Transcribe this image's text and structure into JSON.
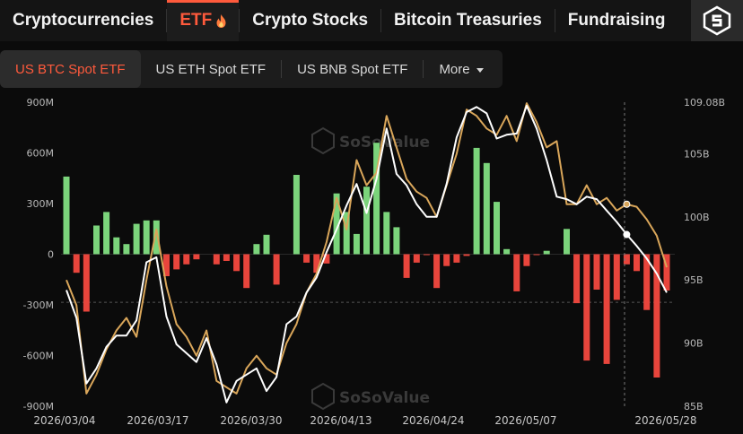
{
  "top_nav": {
    "tabs": [
      {
        "label": "Cryptocurrencies"
      },
      {
        "label": "ETF"
      },
      {
        "label": "Crypto Stocks"
      },
      {
        "label": "Bitcoin Treasuries"
      },
      {
        "label": "Fundraising"
      }
    ]
  },
  "sub_nav": {
    "tabs": [
      {
        "label": "US BTC Spot ETF"
      },
      {
        "label": "US ETH Spot ETF"
      },
      {
        "label": "US BNB Spot ETF"
      }
    ],
    "more_label": "More"
  },
  "watermark": {
    "text": "SoSoValue"
  },
  "colors": {
    "accent": "#ff5a3c",
    "inflow": "#7bd47b",
    "outflow": "#e8453c",
    "line_white": "#ffffff",
    "line_gold": "#d9a65a"
  },
  "chart_data": {
    "type": "bar",
    "left_axis": {
      "ticks": [
        "900M",
        "600M",
        "300M",
        "0",
        "-300M",
        "-600M",
        "-900M"
      ],
      "range": [
        -900,
        900
      ],
      "unit": "M"
    },
    "right_axis": {
      "ticks": [
        "109.08B",
        "105B",
        "100B",
        "95B",
        "90B",
        "85B"
      ],
      "range": [
        85,
        109.08
      ],
      "unit": "B"
    },
    "x_ticks": [
      "2026/03/04",
      "2026/03/17",
      "2026/03/30",
      "2026/04/13",
      "2026/04/24",
      "2026/05/07",
      "2026/05/28"
    ],
    "series": [
      {
        "values": [
          460,
          -110,
          -340,
          170,
          250,
          100,
          60,
          180,
          200,
          200,
          -130,
          -90,
          -60,
          -30,
          0,
          -60,
          -40,
          -100,
          -200,
          60,
          115,
          -180,
          0,
          470,
          -50,
          -110,
          -55,
          360,
          250,
          120,
          400,
          660,
          250,
          160,
          -140,
          -50,
          -1,
          -200,
          -70,
          -50,
          -10,
          630,
          540,
          310,
          30,
          -220,
          -70,
          -2,
          20,
          0,
          150,
          -290,
          -630,
          -210,
          -650,
          -270,
          -60,
          -100,
          -330,
          -730,
          -215
        ]
      },
      {
        "values": [
          94.2,
          92.0,
          86.8,
          88.0,
          89.7,
          90.6,
          90.6,
          91.8,
          96.4,
          96.8,
          92.1,
          89.9,
          89.2,
          88.5,
          90.4,
          88.3,
          85.3,
          87.0,
          87.5,
          88.0,
          86.2,
          87.3,
          91.5,
          92.1,
          94.0,
          95.2,
          97.2,
          99.0,
          100.9,
          102.6,
          100.3,
          103.0,
          107.0,
          103.4,
          102.5,
          101.0,
          100.0,
          100.0,
          102.6,
          106.3,
          108.3,
          108.7,
          108.2,
          106.2,
          106.5,
          106.6,
          108.8,
          107.0,
          104.5,
          101.6,
          101.4,
          101.0,
          101.6,
          101.4,
          100.5,
          99.6,
          98.6,
          97.7,
          96.7,
          95.5,
          94.0
        ]
      },
      {
        "values": [
          95.0,
          93.0,
          86.0,
          87.5,
          89.5,
          91.0,
          92.0,
          90.5,
          95.0,
          99.0,
          94.5,
          91.5,
          90.5,
          89.0,
          91.0,
          87.0,
          86.5,
          86.0,
          88.0,
          89.0,
          88.0,
          87.5,
          90.0,
          91.5,
          94.0,
          95.5,
          98.0,
          101.5,
          99.0,
          104.5,
          102.5,
          103.5,
          108.0,
          105.5,
          103.0,
          102.0,
          101.5,
          100.0,
          102.5,
          105.0,
          108.5,
          108.0,
          107.0,
          106.5,
          108.0,
          106.0,
          109.0,
          107.5,
          105.5,
          106.0,
          101.0,
          101.0,
          102.5,
          101.0,
          101.5,
          100.5,
          101.0,
          100.8,
          99.8,
          98.5,
          96.0
        ]
      }
    ]
  }
}
